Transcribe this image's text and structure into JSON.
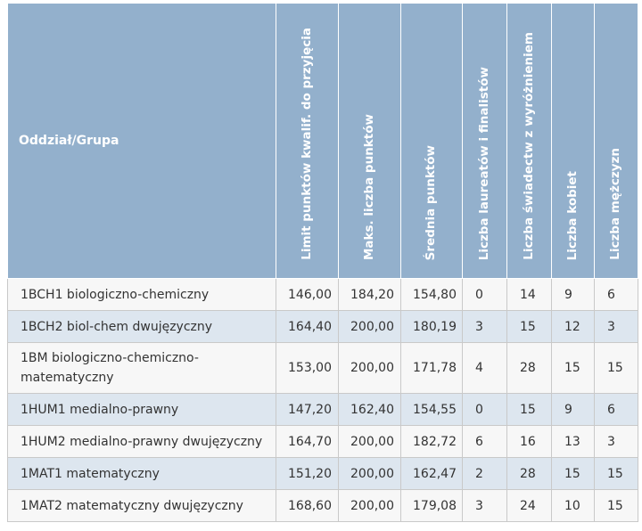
{
  "headers": [
    "Oddział/Grupa",
    "Limit punktów kwalif. do przyjęcia",
    "Maks. liczba punktów",
    "Średnia punktów",
    "Liczba laureatów i finalistów",
    "Liczba świadectw z wyróżnieniem",
    "Liczba kobiet",
    "Liczba mężczyzn"
  ],
  "rows": [
    [
      "1BCH1 biologiczno-chemiczny",
      "146,00",
      "184,20",
      "154,80",
      "0",
      "14",
      "9",
      "6"
    ],
    [
      "1BCH2 biol-chem dwujęzyczny",
      "164,40",
      "200,00",
      "180,19",
      "3",
      "15",
      "12",
      "3"
    ],
    [
      "1BM biologiczno-chemiczno-matematyczny",
      "153,00",
      "200,00",
      "171,78",
      "4",
      "28",
      "15",
      "15"
    ],
    [
      "1HUM1 medialno-prawny",
      "147,20",
      "162,40",
      "154,55",
      "0",
      "15",
      "9",
      "6"
    ],
    [
      "1HUM2 medialno-prawny dwujęzyczny",
      "164,70",
      "200,00",
      "182,72",
      "6",
      "16",
      "13",
      "3"
    ],
    [
      "1MAT1 matematyczny",
      "151,20",
      "200,00",
      "162,47",
      "2",
      "28",
      "15",
      "15"
    ],
    [
      "1MAT2 matematyczny dwujęzyczny",
      "168,60",
      "200,00",
      "179,08",
      "3",
      "24",
      "10",
      "15"
    ]
  ],
  "colors": {
    "header_bg": "#93b0cc",
    "row_odd": "#f7f7f7",
    "row_even": "#dde6ef",
    "text": "#333333"
  }
}
